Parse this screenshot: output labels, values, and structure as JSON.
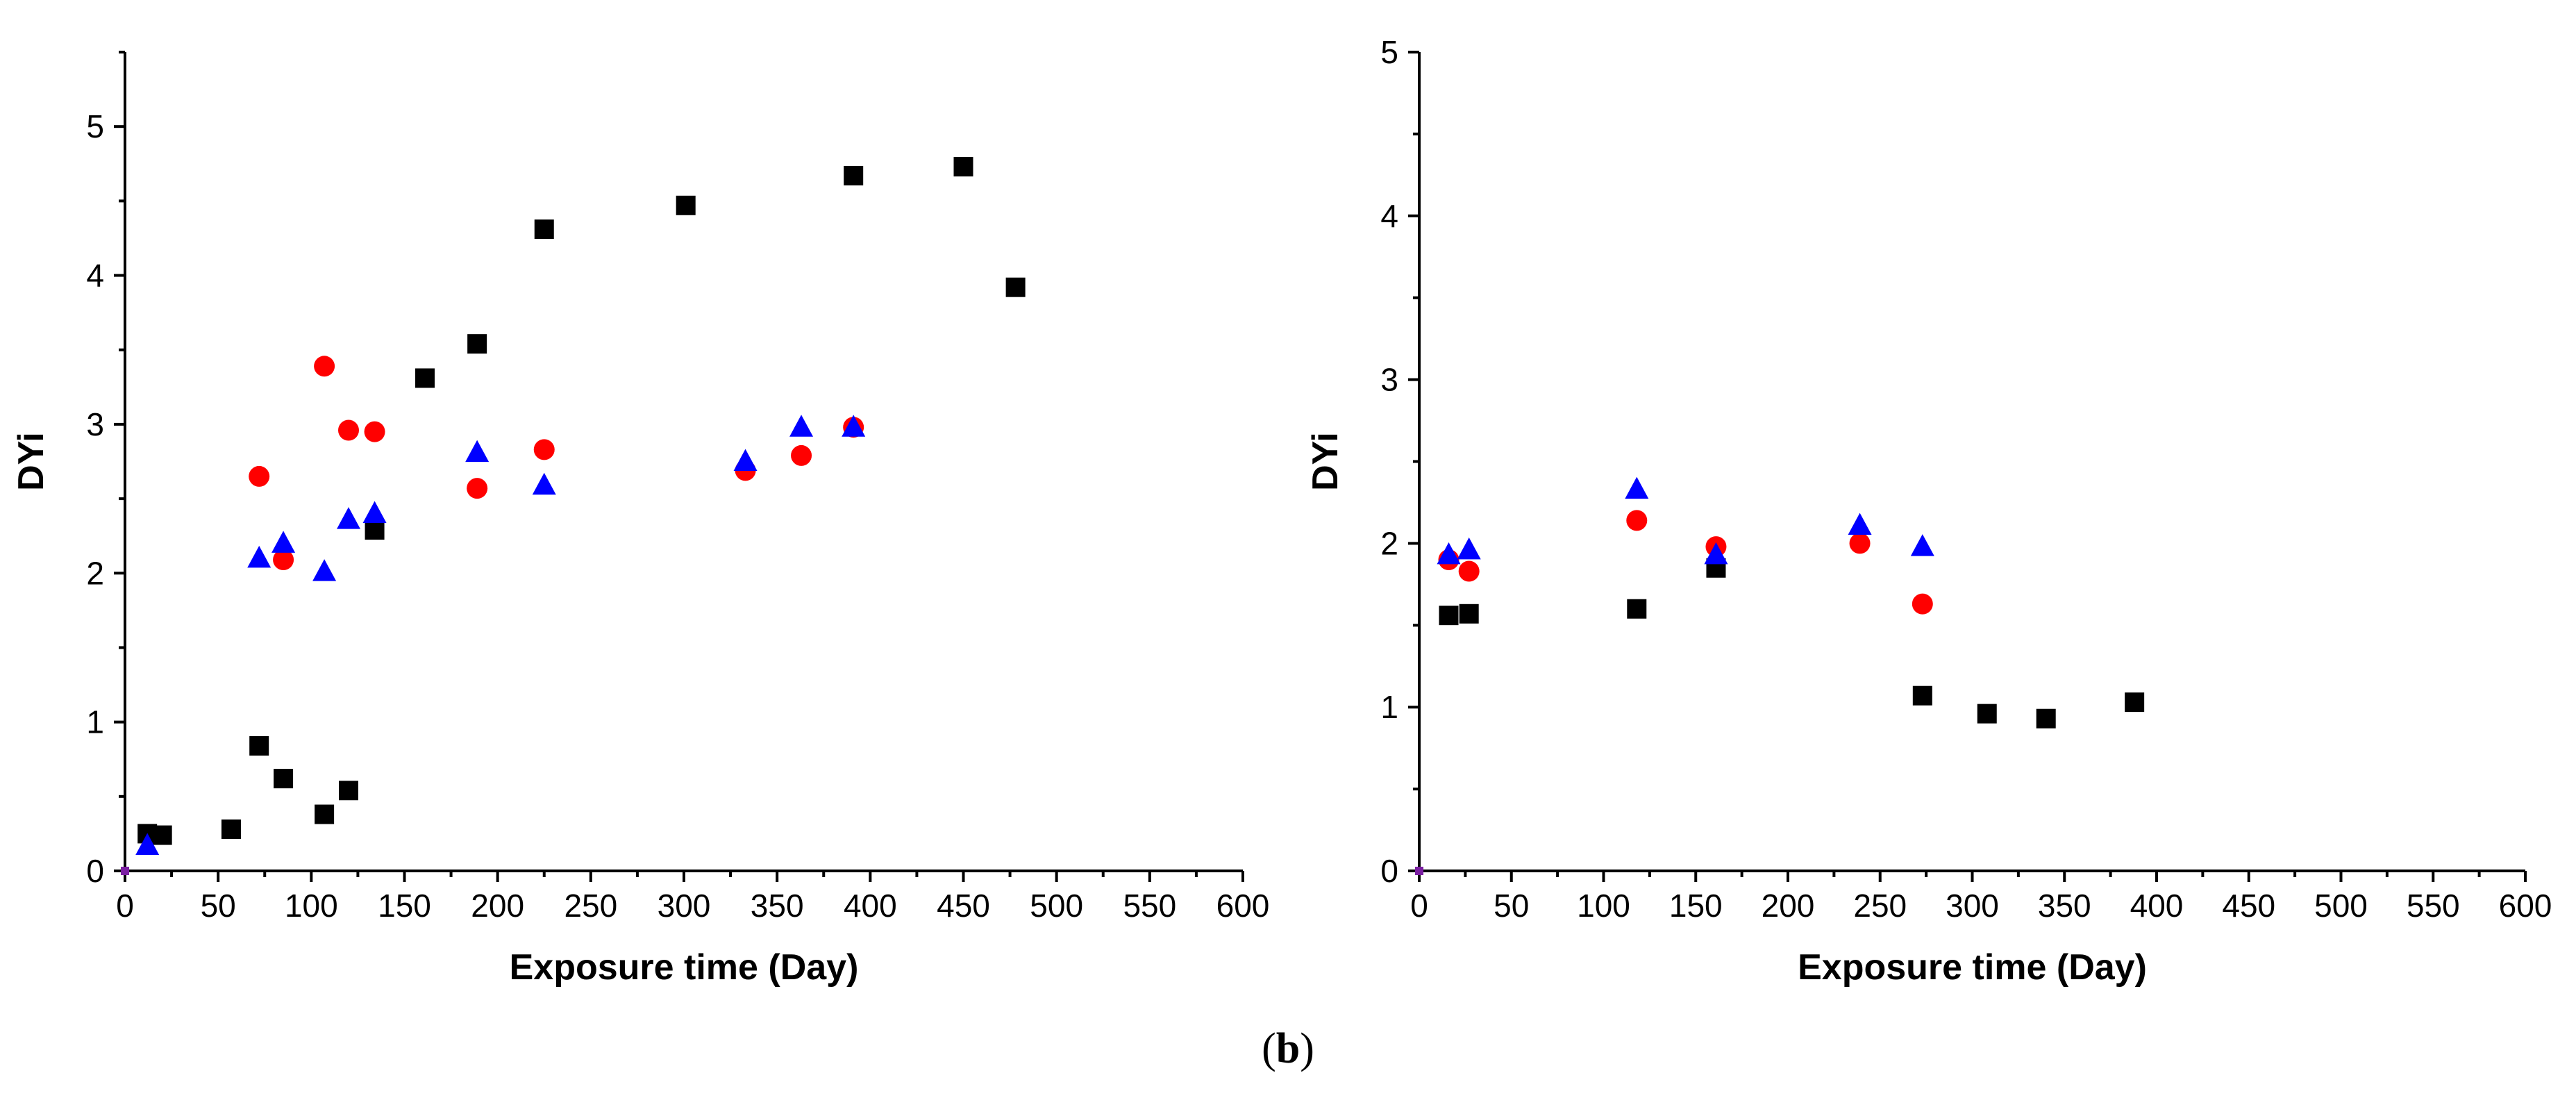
{
  "caption": {
    "prefix": "(",
    "label": "b",
    "suffix": ")"
  },
  "colors": {
    "square": "#000000",
    "circle": "#ff0000",
    "triangle": "#0000ff",
    "origin": "#7b1fa2"
  },
  "chart_data": [
    {
      "type": "scatter",
      "title": "",
      "xlabel": "Exposure time (Day)",
      "ylabel": "DYi",
      "xlim": [
        0,
        600
      ],
      "ylim": [
        0,
        5.5
      ],
      "xticks": [
        0,
        50,
        100,
        150,
        200,
        250,
        300,
        350,
        400,
        450,
        500,
        550,
        600
      ],
      "yticks": [
        0,
        1,
        2,
        3,
        4,
        5
      ],
      "series": [
        {
          "name": "square",
          "marker": "square",
          "color": "#000000",
          "points": [
            [
              12,
              0.25
            ],
            [
              20,
              0.24
            ],
            [
              57,
              0.28
            ],
            [
              72,
              0.84
            ],
            [
              85,
              0.62
            ],
            [
              107,
              0.38
            ],
            [
              120,
              0.54
            ],
            [
              134,
              2.29
            ],
            [
              161,
              3.31
            ],
            [
              189,
              3.54
            ],
            [
              225,
              4.31
            ],
            [
              301,
              4.47
            ],
            [
              391,
              4.67
            ],
            [
              450,
              4.73
            ],
            [
              478,
              3.92
            ]
          ]
        },
        {
          "name": "circle",
          "marker": "circle",
          "color": "#ff0000",
          "points": [
            [
              72,
              2.65
            ],
            [
              85,
              2.09
            ],
            [
              107,
              3.39
            ],
            [
              120,
              2.96
            ],
            [
              134,
              2.95
            ],
            [
              189,
              2.57
            ],
            [
              225,
              2.83
            ],
            [
              333,
              2.69
            ],
            [
              363,
              2.79
            ],
            [
              391,
              2.98
            ]
          ]
        },
        {
          "name": "triangle",
          "marker": "triangle",
          "color": "#0000ff",
          "points": [
            [
              12,
              0.17
            ],
            [
              72,
              2.1
            ],
            [
              85,
              2.2
            ],
            [
              107,
              2.01
            ],
            [
              120,
              2.36
            ],
            [
              134,
              2.4
            ],
            [
              189,
              2.81
            ],
            [
              225,
              2.59
            ],
            [
              333,
              2.75
            ],
            [
              363,
              2.98
            ],
            [
              391,
              2.98
            ]
          ]
        },
        {
          "name": "origin",
          "marker": "square",
          "color": "#7b1fa2",
          "points": [
            [
              0,
              0
            ]
          ]
        }
      ]
    },
    {
      "type": "scatter",
      "title": "",
      "xlabel": "Exposure time (Day)",
      "ylabel": "DYi",
      "xlim": [
        0,
        600
      ],
      "ylim": [
        0,
        5
      ],
      "xticks": [
        0,
        50,
        100,
        150,
        200,
        250,
        300,
        350,
        400,
        450,
        500,
        550,
        600
      ],
      "yticks": [
        0,
        1,
        2,
        3,
        4,
        5
      ],
      "series": [
        {
          "name": "square",
          "marker": "square",
          "color": "#000000",
          "points": [
            [
              16,
              1.56
            ],
            [
              27,
              1.57
            ],
            [
              118,
              1.6
            ],
            [
              161,
              1.85
            ],
            [
              273,
              1.07
            ],
            [
              308,
              0.96
            ],
            [
              340,
              0.93
            ],
            [
              388,
              1.03
            ]
          ]
        },
        {
          "name": "circle",
          "marker": "circle",
          "color": "#ff0000",
          "points": [
            [
              16,
              1.9
            ],
            [
              27,
              1.83
            ],
            [
              118,
              2.14
            ],
            [
              161,
              1.98
            ],
            [
              239,
              2.0
            ],
            [
              273,
              1.63
            ]
          ]
        },
        {
          "name": "triangle",
          "marker": "triangle",
          "color": "#0000ff",
          "points": [
            [
              16,
              1.93
            ],
            [
              27,
              1.96
            ],
            [
              118,
              2.33
            ],
            [
              161,
              1.93
            ],
            [
              239,
              2.11
            ],
            [
              273,
              1.98
            ]
          ]
        },
        {
          "name": "origin",
          "marker": "square",
          "color": "#7b1fa2",
          "points": [
            [
              0,
              0
            ]
          ]
        }
      ]
    }
  ]
}
